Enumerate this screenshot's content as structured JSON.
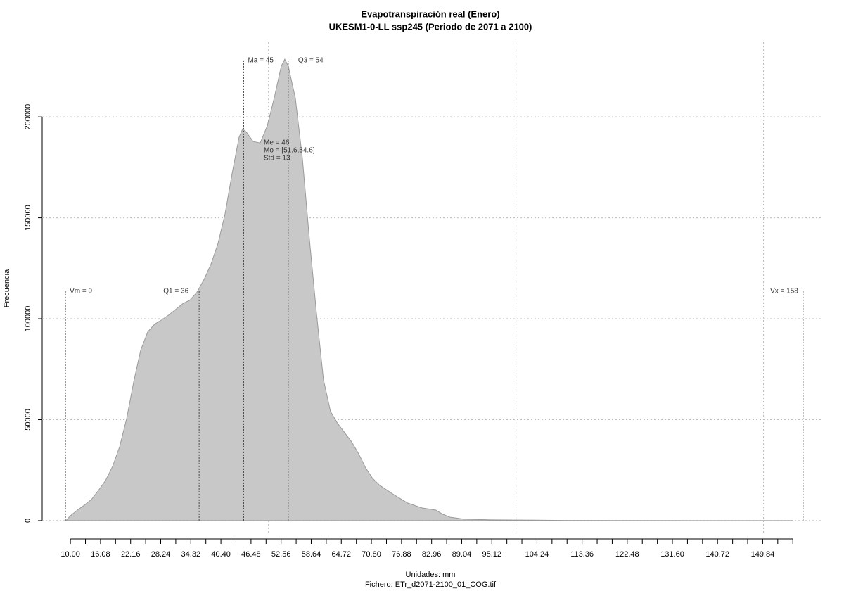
{
  "chart_data": {
    "type": "area",
    "title": "Evapotranspiración real (Enero)",
    "subtitle": "UKESM1-0-LL ssp245 (Periodo de 2071 a 2100)",
    "x_label": "Unidades: mm",
    "file_label": "Fichero: ETr_d2071-2100_01_COG.tif",
    "y_label": "Frecuencia",
    "color": "#c8c8c8",
    "line_color": "#9a9a9a",
    "grid": true,
    "xlim": [
      4.3,
      162
    ],
    "ylim": [
      -6300,
      237000
    ],
    "yticks": [
      0,
      50000,
      100000,
      150000,
      200000
    ],
    "xgrid": [
      50,
      100,
      150
    ],
    "xticks": [
      {
        "value": 10,
        "label": "10.00"
      },
      16.08,
      22.16,
      28.24,
      34.32,
      {
        "value": 40.4,
        "label": "40.40"
      },
      46.48,
      52.56,
      58.64,
      64.72,
      {
        "value": 70.8,
        "label": "70.80"
      },
      76.88,
      82.96,
      89.04,
      95.12,
      104.24,
      113.36,
      122.48,
      {
        "value": 131.6,
        "label": "131.60"
      },
      140.72,
      149.84
    ],
    "xminor_ticks": [
      13.04,
      19.12,
      25.2,
      31.28,
      37.36,
      43.44,
      49.52,
      55.6,
      61.68,
      67.76,
      73.84,
      79.92,
      86,
      92.08,
      98.16,
      101.2,
      107.28,
      110.32,
      116.4,
      119.44,
      125.52,
      128.56,
      134.64,
      137.68,
      143.76,
      146.8,
      152.88,
      155.92
    ],
    "x": [
      9.1,
      10,
      11.42,
      12.84,
      14.26,
      15.68,
      17.1,
      18.52,
      19.94,
      21.36,
      22.78,
      24.2,
      25.62,
      27.04,
      28.46,
      29.88,
      31.29,
      32.71,
      34.13,
      35.55,
      36.97,
      38.39,
      39.81,
      41.23,
      42.65,
      44.07,
      44.78,
      45.49,
      46.91,
      48.33,
      49.75,
      51.17,
      52.59,
      53.3,
      54.01,
      55.43,
      56.85,
      58.27,
      59.69,
      61.11,
      62.53,
      63.95,
      65.37,
      66.79,
      68.21,
      69.63,
      71.05,
      72.46,
      75.3,
      78.14,
      80.98,
      83.82,
      85.24,
      86.66,
      89.5,
      95.16,
      100.86,
      109.4,
      123.6,
      137.8,
      155.9
    ],
    "values": [
      0,
      2400,
      5200,
      7700,
      10500,
      15000,
      19900,
      26900,
      36600,
      50600,
      68800,
      84500,
      93500,
      97400,
      99500,
      101900,
      104700,
      107500,
      109200,
      113100,
      119400,
      127000,
      137200,
      151800,
      171700,
      189900,
      194000,
      192600,
      187800,
      187100,
      195400,
      209400,
      225100,
      228600,
      225100,
      209400,
      179700,
      139600,
      103000,
      69800,
      54100,
      48200,
      43600,
      39100,
      33200,
      26200,
      20900,
      17500,
      12900,
      8700,
      6300,
      5200,
      3100,
      1700,
      700,
      350,
      300,
      100,
      40,
      20,
      0
    ],
    "annotations": [
      {
        "label": "Vm = 9",
        "x": 9
      },
      {
        "label": "Q1 = 36",
        "x": 36
      },
      {
        "label": "Ma = 45",
        "x": 45
      },
      {
        "label": "Q3 = 54",
        "x": 54
      },
      {
        "label": "Vx = 158",
        "x": 158
      }
    ],
    "stats": [
      "Me = 46",
      "Mo = [51.6,54.6]",
      "Std = 13"
    ]
  }
}
